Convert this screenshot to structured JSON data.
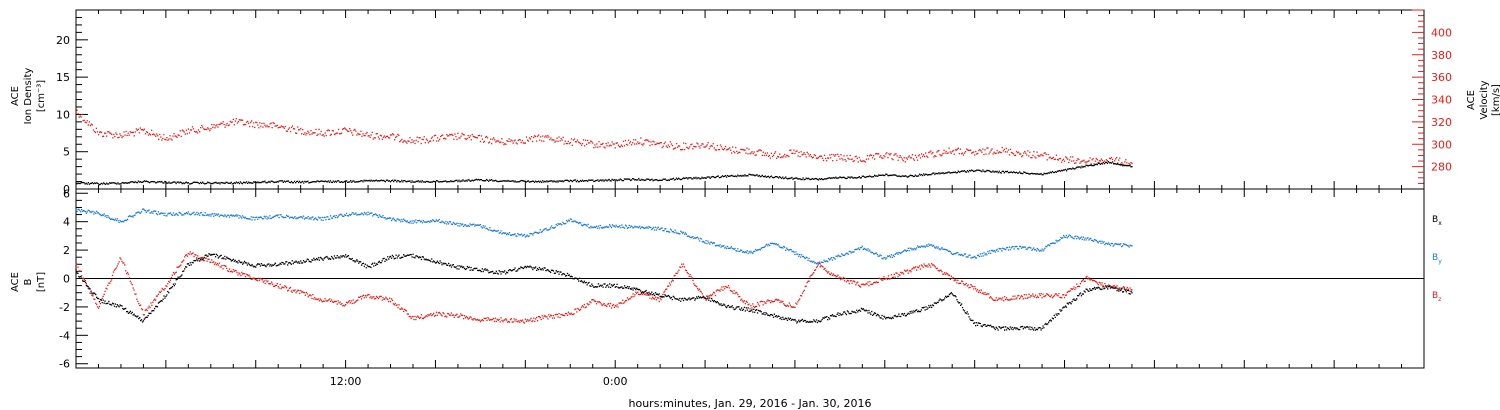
{
  "chart_data": [
    {
      "type": "scatter",
      "panel": "top",
      "ylabel_left": [
        "ACE",
        "Ion Density",
        "[cm⁻³]"
      ],
      "ylabel_right": [
        "ACE",
        "Velocity",
        "[km/s]"
      ],
      "ylim_left": [
        0,
        24
      ],
      "ylim_right": [
        260,
        420
      ],
      "left_ticks": [
        "0",
        "5",
        "10",
        "15",
        "20"
      ],
      "left_tick_values": [
        0,
        5,
        10,
        15,
        20
      ],
      "right_ticks": [
        "280",
        "300",
        "320",
        "340",
        "360",
        "380",
        "400"
      ],
      "right_tick_values": [
        280,
        300,
        320,
        340,
        360,
        380,
        400
      ],
      "series": [
        {
          "color": "#000000",
          "axis": "left",
          "x": [
            0,
            1,
            2,
            3,
            4,
            5,
            6,
            7,
            8,
            9,
            10,
            11,
            12,
            13,
            14,
            15,
            16,
            17,
            18,
            19,
            20,
            21,
            22,
            23,
            24,
            25,
            26,
            27,
            28,
            29,
            30,
            31,
            32,
            33,
            34,
            35,
            36,
            37,
            38,
            39,
            40,
            41,
            42,
            43,
            44,
            45,
            46,
            47
          ],
          "values": [
            0.8,
            0.7,
            0.8,
            1.0,
            0.9,
            0.8,
            0.8,
            0.8,
            0.9,
            1.0,
            0.9,
            1.0,
            1.0,
            1.1,
            1.1,
            1.0,
            1.0,
            1.1,
            1.2,
            1.1,
            1.0,
            1.0,
            1.1,
            1.1,
            1.2,
            1.3,
            1.2,
            1.4,
            1.5,
            1.7,
            1.9,
            1.6,
            1.4,
            1.3,
            1.5,
            1.6,
            1.9,
            1.7,
            2.0,
            2.2,
            2.5,
            2.3,
            2.2,
            2.0,
            2.5,
            3.1,
            3.6,
            3.0
          ]
        },
        {
          "color": "#e0201a",
          "axis": "right",
          "x": [
            0,
            1,
            2,
            3,
            4,
            5,
            6,
            7,
            8,
            9,
            10,
            11,
            12,
            13,
            14,
            15,
            16,
            17,
            18,
            19,
            20,
            21,
            22,
            23,
            24,
            25,
            26,
            27,
            28,
            29,
            30,
            31,
            32,
            33,
            34,
            35,
            36,
            37,
            38,
            39,
            40,
            41,
            42,
            43,
            44,
            45,
            46,
            47
          ],
          "values": [
            330,
            310,
            308,
            312,
            305,
            312,
            315,
            320,
            318,
            316,
            312,
            310,
            312,
            308,
            307,
            303,
            305,
            307,
            305,
            302,
            304,
            306,
            302,
            300,
            299,
            303,
            300,
            298,
            300,
            295,
            294,
            290,
            292,
            288,
            288,
            286,
            290,
            287,
            291,
            294,
            292,
            295,
            292,
            290,
            286,
            285,
            286,
            283
          ]
        }
      ]
    },
    {
      "type": "scatter",
      "panel": "bottom",
      "ylabel_left": [
        "ACE",
        "B",
        "[nT]"
      ],
      "ylim": [
        -6.3,
        6.3
      ],
      "ticks": [
        "-6",
        "-4",
        "-2",
        "0",
        "2",
        "4",
        "6"
      ],
      "tick_values": [
        -6,
        -4,
        -2,
        0,
        2,
        4,
        6
      ],
      "series": [
        {
          "name": "B",
          "subscript": "x",
          "color": "#000000",
          "x": [
            0,
            1,
            2,
            3,
            4,
            5,
            6,
            7,
            8,
            9,
            10,
            11,
            12,
            13,
            14,
            15,
            16,
            17,
            18,
            19,
            20,
            21,
            22,
            23,
            24,
            25,
            26,
            27,
            28,
            29,
            30,
            31,
            32,
            33,
            34,
            35,
            36,
            37,
            38,
            39,
            40,
            41,
            42,
            43,
            44,
            45,
            46,
            47
          ],
          "values": [
            0.5,
            -1.5,
            -2.0,
            -3.0,
            -1.2,
            1.0,
            1.7,
            1.3,
            0.9,
            1.0,
            1.2,
            1.4,
            1.6,
            0.8,
            1.5,
            1.6,
            1.2,
            0.8,
            0.6,
            0.4,
            0.8,
            0.6,
            0.2,
            -0.5,
            -0.5,
            -0.8,
            -1.2,
            -1.5,
            -1.3,
            -2.0,
            -2.2,
            -2.6,
            -3.0,
            -3.0,
            -2.5,
            -2.2,
            -2.8,
            -2.5,
            -2.0,
            -1.0,
            -3.2,
            -3.5,
            -3.5,
            -3.5,
            -2.0,
            -0.8,
            -0.6,
            -1.0
          ]
        },
        {
          "name": "B",
          "subscript": "y",
          "color": "#1c7ad6",
          "x": [
            0,
            1,
            2,
            3,
            4,
            5,
            6,
            7,
            8,
            9,
            10,
            11,
            12,
            13,
            14,
            15,
            16,
            17,
            18,
            19,
            20,
            21,
            22,
            23,
            24,
            25,
            26,
            27,
            28,
            29,
            30,
            31,
            32,
            33,
            34,
            35,
            36,
            37,
            38,
            39,
            40,
            41,
            42,
            43,
            44,
            45,
            46,
            47
          ],
          "values": [
            4.8,
            4.6,
            4.0,
            4.8,
            4.5,
            4.6,
            4.5,
            4.4,
            4.2,
            4.4,
            4.3,
            4.2,
            4.5,
            4.6,
            4.2,
            4.0,
            4.1,
            3.8,
            3.7,
            3.2,
            3.0,
            3.5,
            4.1,
            3.6,
            3.7,
            3.6,
            3.5,
            3.2,
            2.6,
            2.2,
            1.8,
            2.5,
            1.8,
            1.0,
            1.6,
            2.2,
            1.4,
            2.0,
            2.4,
            1.8,
            1.5,
            2.0,
            2.2,
            2.0,
            3.0,
            2.8,
            2.4,
            2.3
          ]
        },
        {
          "name": "B",
          "subscript": "z",
          "color": "#e0201a",
          "x": [
            0,
            1,
            2,
            3,
            4,
            5,
            6,
            7,
            8,
            9,
            10,
            11,
            12,
            13,
            14,
            15,
            16,
            17,
            18,
            19,
            20,
            21,
            22,
            23,
            24,
            25,
            26,
            27,
            28,
            29,
            30,
            31,
            32,
            33,
            34,
            35,
            36,
            37,
            38,
            39,
            40,
            41,
            42,
            43,
            44,
            45,
            46,
            47
          ],
          "values": [
            1.0,
            -2.0,
            1.5,
            -2.5,
            -0.5,
            1.8,
            1.2,
            0.5,
            0.0,
            -0.5,
            -1.0,
            -1.5,
            -1.8,
            -1.2,
            -1.5,
            -2.8,
            -2.5,
            -2.6,
            -2.9,
            -2.9,
            -3.0,
            -2.7,
            -2.5,
            -1.6,
            -2.0,
            -1.0,
            -1.5,
            1.0,
            -1.5,
            -0.5,
            -2.0,
            -1.5,
            -2.0,
            1.0,
            0.0,
            -0.5,
            0.0,
            0.5,
            1.0,
            0.0,
            -0.7,
            -1.5,
            -1.3,
            -1.2,
            -1.2,
            0.0,
            -0.6,
            -0.8
          ]
        }
      ]
    }
  ],
  "x_axis": {
    "label": "hours:minutes, Jan. 29, 2016 - Jan. 30, 2016",
    "xlim": [
      0,
      60
    ],
    "tick_labels": [
      "12:00",
      "0:00"
    ],
    "tick_label_positions": [
      12,
      24
    ]
  }
}
